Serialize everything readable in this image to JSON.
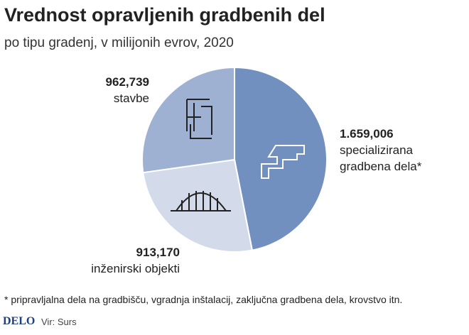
{
  "chart_data": {
    "type": "pie",
    "title": "Vrednost opravljenih gradbenih del",
    "subtitle": "po tipu gradenj, v milijonih evrov, 2020",
    "categories": [
      "specializirana gradbena dela*",
      "inženirski objekti",
      "stavbe"
    ],
    "values": [
      1659.006,
      913.17,
      962.739
    ],
    "value_labels": [
      "1.659,006",
      "913,170",
      "962,739"
    ],
    "colors": [
      "#7190bf",
      "#d3dbeb",
      "#9fb1d2"
    ],
    "note": "* pripravljalna dela na gradbišču, vgradnja inštalacij, zaključna gradbena dela, krovstvo itn.",
    "logo": "DELO",
    "source": "Vir: Surs"
  }
}
